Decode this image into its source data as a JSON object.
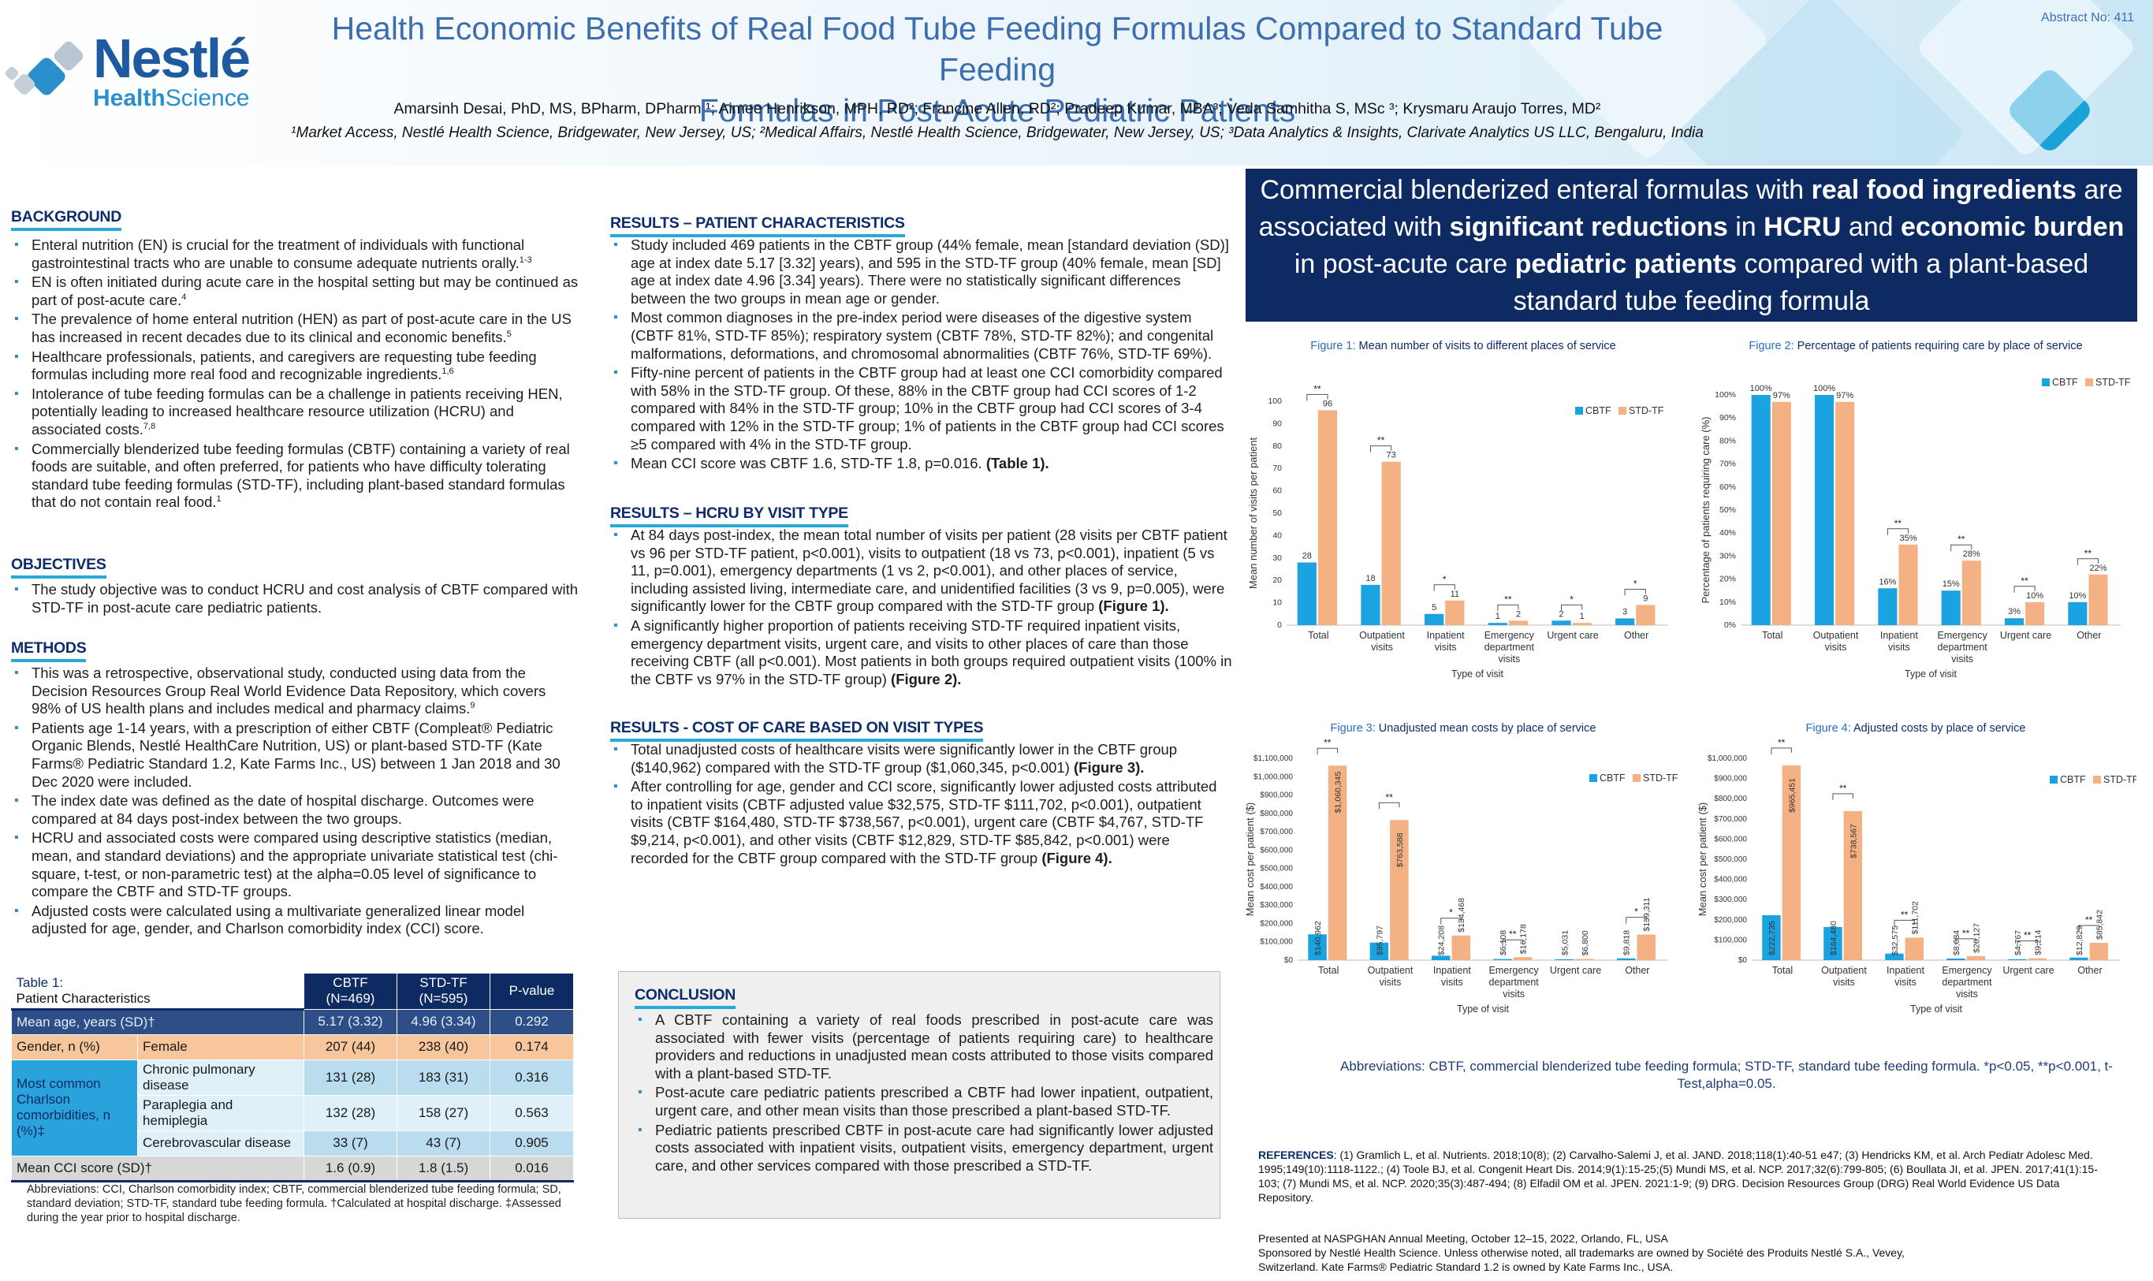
{
  "header": {
    "abstract_no": "Abstract No: 411",
    "title_line1": "Health Economic Benefits of Real Food Tube Feeding Formulas Compared to Standard Tube Feeding",
    "title_line2": "Formulas in Post-Acute Pediatric Patients",
    "authors": "Amarsinh Desai, PhD, MS, BPharm, DPharm ¹; Aimee Henrikson, MPH, RD²; Francine Allen, RD²;  Pradeep Kumar, MBA³; Veda Samhitha S, MSc ³; Krysmaru Araujo Torres, MD²",
    "affiliations": "¹Market Access, Nestlé Health Science, Bridgewater, New Jersey, US; ²Medical Affairs, Nestlé Health Science, Bridgewater, New Jersey, US; ³Data Analytics & Insights, Clarivate Analytics US LLC, Bengaluru, India",
    "logo_brand": "Nestlé",
    "logo_health": "Health",
    "logo_science": "Science"
  },
  "background": {
    "heading": "BACKGROUND",
    "items": [
      {
        "text": "Enteral nutrition (EN) is crucial for the treatment of individuals with functional gastrointestinal tracts who are unable to consume adequate nutrients orally.",
        "sup": "1-3"
      },
      {
        "text": "EN is often initiated during acute care in the hospital setting but may be continued as part of post-acute care.",
        "sup": "4"
      },
      {
        "text": "The prevalence of home enteral nutrition (HEN) as part of post-acute care in the US has increased in recent decades due to its clinical and economic benefits.",
        "sup": "5"
      },
      {
        "text": "Healthcare professionals, patients, and caregivers are requesting tube feeding formulas including more real food and recognizable ingredients.",
        "sup": "1,6"
      },
      {
        "text": "Intolerance of tube feeding formulas can be a challenge in patients receiving HEN, potentially leading to increased healthcare resource utilization (HCRU) and associated costs.",
        "sup": "7,8"
      },
      {
        "text": "Commercially blenderized tube feeding formulas (CBTF) containing a variety of real foods are suitable, and often preferred, for patients who have difficulty tolerating standard tube feeding formulas (STD-TF), including plant-based standard formulas that do not contain real food.",
        "sup": "1"
      }
    ]
  },
  "objectives": {
    "heading": "OBJECTIVES",
    "items": [
      {
        "text": "The study objective was to conduct HCRU and cost analysis of CBTF compared with STD-TF in post-acute care pediatric patients.",
        "sup": ""
      }
    ]
  },
  "methods": {
    "heading": "METHODS",
    "items": [
      {
        "text": "This was a retrospective, observational study, conducted using data from the Decision Resources Group Real World Evidence Data Repository, which covers 98% of US health plans and includes medical and pharmacy claims.",
        "sup": "9"
      },
      {
        "text": "Patients age 1-14 years, with a prescription of either CBTF  (Compleat® Pediatric Organic Blends, Nestlé HealthCare Nutrition, US) or plant-based STD-TF (Kate Farms® Pediatric Standard 1.2,  Kate Farms Inc., US) between 1 Jan 2018 and 30 Dec 2020 were included.",
        "sup": ""
      },
      {
        "text": "The index date was defined as the date of hospital discharge.  Outcomes were compared at 84 days post-index between the  two groups.",
        "sup": ""
      },
      {
        "text": "HCRU and associated costs were compared using descriptive  statistics (median, mean, and standard deviations) and the  appropriate univariate statistical test (chi-square, t-test, or non-parametric test) at the alpha=0.05 level of significance  to compare the CBTF and STD-TF groups.",
        "sup": ""
      },
      {
        "text": "Adjusted costs were calculated using a multivariate generalized  linear model adjusted for age, gender, and Charlson comorbidity index (CCI) score.",
        "sup": ""
      }
    ]
  },
  "results_pc": {
    "heading": "RESULTS – PATIENT CHARACTERISTICS",
    "items": [
      {
        "text": "Study included 469 patients in the CBTF group (44%  female, mean [standard deviation (SD)] age at index date 5.17  [3.32] years), and 595 in the STD-TF group (40% female, mean  [SD] age at index date 4.96 [3.34] years). There were no statistically significant differences between the two groups in mean age or gender.",
        "bold": ""
      },
      {
        "text": "Most common diagnoses in the pre-index period were diseases of the digestive system (CBTF 81%, STD-TF 85%); respiratory system (CBTF 78%, STD-TF 82%); and congenital malformations, deformations, and chromosomal abnormalities (CBTF 76%, STD-TF 69%).",
        "bold": ""
      },
      {
        "text": "Fifty-nine percent of patients in the CBTF group had at least one CCI comorbidity compared with 58% in the STD-TF group. Of these, 88% in the CBTF group had CCI scores of 1-2  compared with 84% in the STD-TF group; 10% in the CBTF group had CCI scores of 3-4 compared with 12% in the STD-TF  group; 1% of patients in the CBTF group had CCI scores ≥5  compared with 4% in the STD-TF group.",
        "bold": ""
      },
      {
        "text": "Mean CCI score was CBTF 1.6, STD-TF 1.8, p=0.016. ",
        "bold": "(Table 1)."
      }
    ]
  },
  "results_hcru": {
    "heading": "RESULTS – HCRU BY VISIT TYPE",
    "items": [
      {
        "text": "At 84 days post-index, the mean total number of visits per patient (28 visits per CBTF patient vs 96 per STD-TF patient, p<0.001), visits to outpatient (18 vs 73, p<0.001), inpatient (5 vs 11, p=0.001), emergency departments (1 vs 2, p<0.001), and other places of service, including assisted living, intermediate care, and unidentified facilities (3 vs 9, p=0.005), were significantly lower for the CBTF group compared with the STD-TF group  ",
        "bold": "(Figure 1)."
      },
      {
        "text": "A significantly higher proportion of patients receiving STD-TF required inpatient visits, emergency department visits, urgent care, and visits to other places of care than those receiving CBTF (all p<0.001). Most patients in both groups required outpatient visits (100% in the CBTF vs 97% in the STD-TF group) ",
        "bold": "(Figure 2)."
      }
    ]
  },
  "results_cost": {
    "heading": "RESULTS - COST OF CARE BASED ON VISIT TYPES",
    "items": [
      {
        "text": "Total unadjusted costs of healthcare visits were significantly lower in the CBTF group ($140,962) compared with the STD-TF group ($1,060,345, p<0.001) ",
        "bold": "(Figure 3)."
      },
      {
        "text": "After controlling for age, gender and CCI score, significantly lower adjusted costs attributed to inpatient visits (CBTF adjusted value $32,575, STD-TF $111,702, p<0.001), outpatient visits (CBTF $164,480, STD-TF $738,567, p<0.001), urgent care (CBTF $4,767, STD-TF $9,214, p<0.001), and other visits (CBTF $12,829, STD-TF $85,842, p<0.001) were recorded for the CBTF group compared with the STD-TF group ",
        "bold": "(Figure 4)."
      }
    ]
  },
  "conclusion": {
    "heading": "CONCLUSION",
    "items": [
      "A CBTF containing a variety of real foods prescribed in post-acute care was associated with fewer visits (percentage of patients requiring care) to healthcare providers and reductions in unadjusted mean costs attributed to those visits  compared with a plant-based STD-TF.",
      "Post-acute care pediatric patients prescribed a CBTF had lower inpatient, outpatient, urgent care, and other mean visits than those prescribed a plant-based STD-TF.",
      "Pediatric patients prescribed CBTF in post-acute care had significantly lower adjusted costs associated with inpatient visits, outpatient visits, emergency department, urgent care, and other services compared with those prescribed a STD-TF."
    ]
  },
  "banner": {
    "segments": [
      {
        "t": "Commercial blenderized enteral formulas with ",
        "b": false
      },
      {
        "t": "real food ingredients",
        "b": true
      },
      {
        "t": " are associated with ",
        "b": false
      },
      {
        "t": "significant reductions",
        "b": true
      },
      {
        "t": " in ",
        "b": false
      },
      {
        "t": "HCRU",
        "b": true
      },
      {
        "t": " and ",
        "b": false
      },
      {
        "t": "economic burden",
        "b": true
      },
      {
        "t": " in post-acute care ",
        "b": false
      },
      {
        "t": "pediatric patients",
        "b": true
      },
      {
        "t": " compared with a plant-based standard tube feeding formula",
        "b": false
      }
    ]
  },
  "table1": {
    "caption_line1": "Table 1:",
    "caption_line2": "Patient Characteristics",
    "col_cbtf": "CBTF",
    "col_cbtf_n": "(N=469)",
    "col_std": "STD-TF",
    "col_std_n": "(N=595)",
    "col_p": "P-value",
    "age_label": "Mean age, years (SD)†",
    "age_cbtf": "5.17 (3.32)",
    "age_std": "4.96 (3.34)",
    "age_p": "0.292",
    "gender_label": "Gender, n (%)",
    "gender_sub": "Female",
    "gender_cbtf": "207 (44)",
    "gender_std": "238 (40)",
    "gender_p": "0.174",
    "comorb_label": "Most common Charlson comorbidities, n (%)‡",
    "comorb_rows": [
      {
        "name": "Chronic pulmonary disease",
        "cbtf": "131 (28)",
        "std": "183 (31)",
        "p": "0.316"
      },
      {
        "name": "Paraplegia and hemiplegia",
        "cbtf": "132 (28)",
        "std": "158 (27)",
        "p": "0.563"
      },
      {
        "name": "Cerebrovascular disease",
        "cbtf": "33 (7)",
        "std": "43 (7)",
        "p": "0.905"
      }
    ],
    "cci_label": "Mean CCI score (SD)†",
    "cci_cbtf": "1.6 (0.9)",
    "cci_std": "1.8 (1.5)",
    "cci_p": "0.016",
    "footnote": "Abbreviations: CCI, Charlson comorbidity index; CBTF, commercial blenderized tube feeding formula; SD, standard deviation; STD-TF, standard tube feeding formula. †Calculated at hospital discharge. ‡Assessed during the year prior to hospital discharge."
  },
  "chart_data": [
    {
      "type": "bar",
      "title": "Figure 1: Mean number of visits to different places of service",
      "xlabel": "Type of visit",
      "ylabel": "Mean number of visits per patient",
      "ylim": [
        0,
        100
      ],
      "yticks": [
        "0",
        "10",
        "20",
        "30",
        "40",
        "50",
        "60",
        "70",
        "80",
        "90",
        "100"
      ],
      "categories": [
        "Total",
        "Outpatient visits",
        "Inpatient visits",
        "Emergency department visits",
        "Urgent care",
        "Other"
      ],
      "series": [
        {
          "name": "CBTF",
          "values": [
            28,
            18,
            5,
            1,
            2,
            3
          ],
          "labels": [
            "28",
            "18",
            "5",
            "1",
            "2",
            "3"
          ]
        },
        {
          "name": "STD-TF",
          "values": [
            96,
            73,
            11,
            2,
            1,
            9
          ],
          "labels": [
            "96",
            "73",
            "11",
            "2",
            "1",
            "9"
          ]
        }
      ],
      "significance": [
        "**",
        "**",
        "*",
        "**",
        "*",
        "*"
      ]
    },
    {
      "type": "bar",
      "title": "Figure 2: Percentage of patients requiring care by place of service",
      "xlabel": "Type of visit",
      "ylabel": "Percentage of patients requiring care (%)",
      "ylim": [
        0,
        100
      ],
      "yticks": [
        "0%",
        "10%",
        "20%",
        "30%",
        "40%",
        "50%",
        "60%",
        "70%",
        "80%",
        "90%",
        "100%"
      ],
      "categories": [
        "Total",
        "Outpatient visits",
        "Inpatient visits",
        "Emergency department visits",
        "Urgent care",
        "Other"
      ],
      "series": [
        {
          "name": "CBTF",
          "values": [
            100,
            100,
            16,
            15,
            3,
            10
          ],
          "labels": [
            "100%",
            "100%",
            "16%",
            "15%",
            "3%",
            "10%"
          ]
        },
        {
          "name": "STD-TF",
          "values": [
            97,
            97,
            35,
            28,
            10,
            22
          ],
          "labels": [
            "97%",
            "97%",
            "35%",
            "28%",
            "10%",
            "22%"
          ]
        }
      ],
      "significance": [
        "",
        "",
        "**",
        "**",
        "**",
        "**"
      ]
    },
    {
      "type": "bar",
      "title": "Figure 3: Unadjusted mean costs by place of service",
      "xlabel": "Type of visit",
      "ylabel": "Mean cost per patient ($)",
      "ylim": [
        0,
        1100000
      ],
      "yticks": [
        "$0",
        "$100,000",
        "$200,000",
        "$300,000",
        "$400,000",
        "$500,000",
        "$600,000",
        "$700,000",
        "$800,000",
        "$900,000",
        "$1,000,000",
        "$1,100,000"
      ],
      "categories": [
        "Total",
        "Outpatient visits",
        "Inpatient visits",
        "Emergency department visits",
        "Urgent care",
        "Other"
      ],
      "series": [
        {
          "name": "CBTF",
          "values": [
            140962,
            95797,
            24208,
            6108,
            5031,
            9818
          ],
          "labels": [
            "$140,962",
            "$95,797",
            "$24,208",
            "$6,108",
            "$5,031",
            "$9,818"
          ]
        },
        {
          "name": "STD-TF",
          "values": [
            1060345,
            763588,
            134468,
            16178,
            6800,
            139311
          ],
          "labels": [
            "$1,060,345",
            "$763,588",
            "$134,468",
            "$16,178",
            "$6,800",
            "$139,311"
          ]
        }
      ],
      "significance": [
        "**",
        "**",
        "*",
        "**",
        "",
        "*"
      ]
    },
    {
      "type": "bar",
      "title": "Figure 4: Adjusted costs by place of service",
      "xlabel": "Type of visit",
      "ylabel": "Mean cost per patient ($)",
      "ylim": [
        0,
        1000000
      ],
      "yticks": [
        "$0",
        "$100,000",
        "$200,000",
        "$300,000",
        "$400,000",
        "$500,000",
        "$600,000",
        "$700,000",
        "$800,000",
        "$900,000",
        "$1,000,000"
      ],
      "categories": [
        "Total",
        "Outpatient visits",
        "Inpatient visits",
        "Emergency department visits",
        "Urgent care",
        "Other"
      ],
      "series": [
        {
          "name": "CBTF",
          "values": [
            222735,
            164480,
            32575,
            8084,
            4767,
            12829
          ],
          "labels": [
            "$222,735",
            "$164,480",
            "$32,575",
            "$8,084",
            "$4,767",
            "$12,829"
          ]
        },
        {
          "name": "STD-TF",
          "values": [
            965451,
            738567,
            111702,
            20127,
            9214,
            85842
          ],
          "labels": [
            "$965,451",
            "$738,567",
            "$111,702",
            "$20,127",
            "$9,214",
            "$85,842"
          ]
        }
      ],
      "significance": [
        "**",
        "**",
        "**",
        "**",
        "**",
        "**"
      ]
    }
  ],
  "colors": {
    "cbtf": "#1aa3e0",
    "std": "#f4b183",
    "navy": "#0d2a63"
  },
  "abbreviations": "Abbreviations: CBTF, commercial blenderized tube feeding formula;  STD-TF, standard tube feeding formula. *p<0.05, **p<0.001, t-Test,alpha=0.05.",
  "references": {
    "label": "REFERENCES",
    "text": ": (1) Gramlich L, et al. Nutrients. 2018;10(8); (2) Carvalho-Salemi J, et al. JAND. 2018;118(1):40-51 e47; (3) Hendricks KM, et al. Arch Pediatr Adolesc Med. 1995;149(10):1118-1122.; (4) Toole BJ, et al. Congenit Heart Dis. 2014;9(1):15-25;(5) Mundi MS, et al. NCP. 2017;32(6):799-805; (6) Boullata JI, et al. JPEN. 2017;41(1):15-103; (7) Mundi MS, et al. NCP. 2020;35(3):487-494; (8) Elfadil OM et al. JPEN. 2021:1-9; (9) DRG. Decision Resources Group (DRG) Real World Evidence US Data Repository."
  },
  "presented": [
    "Presented at NASPGHAN Annual Meeting, October 12–15, 2022, Orlando, FL, USA",
    "Sponsored by Nestlé Health Science. Unless otherwise noted, all trademarks are owned  by Société des Produits Nestlé S.A., Vevey,",
    "Switzerland. Kate Farms® Pediatric Standard 1.2 is owned by Kate Farms Inc., USA."
  ]
}
